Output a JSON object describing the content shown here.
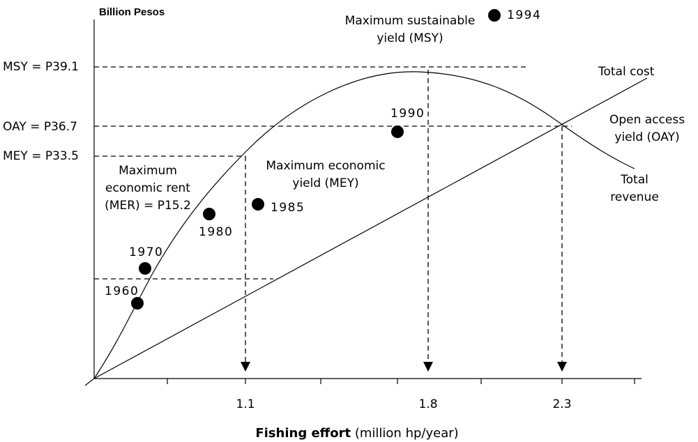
{
  "y_axis_label": "Billion Pesos",
  "x_axis_label": {
    "bold": "Fishing effort",
    "rest": "(million hp/year)"
  },
  "levels": [
    "MSY = P39.1",
    "OAY = P36.7",
    "MEY = P33.5"
  ],
  "annotations": [
    {
      "lines": [
        "Maximum sustainable",
        "yield (MSY)"
      ]
    },
    {
      "lines": [
        "Total cost"
      ]
    },
    {
      "lines": [
        "Open access",
        "yield (OAY)"
      ]
    },
    {
      "lines": [
        "Maximum economic",
        "yield (MEY)"
      ]
    },
    {
      "lines": [
        "Total",
        "revenue"
      ]
    },
    {
      "lines": [
        "Maximum",
        "economic rent",
        "(MER) = P15.2"
      ]
    }
  ],
  "points": [
    "1960",
    "1970",
    "1980",
    "1985",
    "1990",
    "1994"
  ],
  "x_labels": [
    "1.1",
    "1.8",
    "2.3"
  ]
}
